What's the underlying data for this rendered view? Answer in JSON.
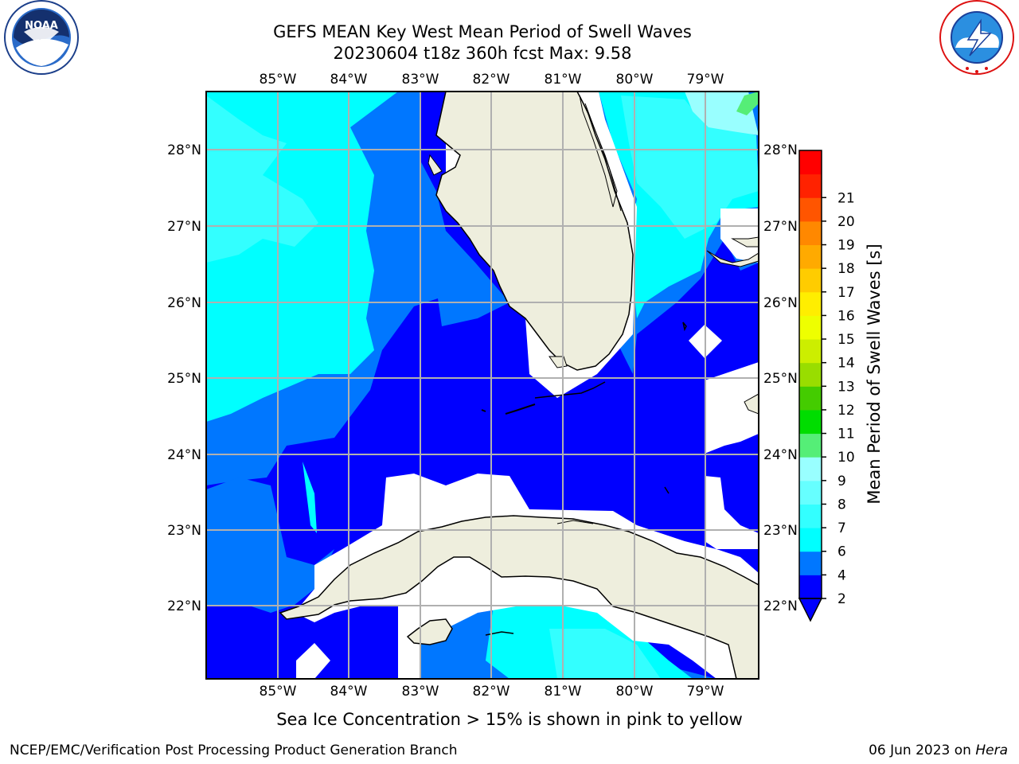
{
  "header": {
    "title_line1": "GEFS MEAN Key West Mean Period of Swell Waves",
    "title_line2": "20230604 t18z 360h fcst   Max: 9.58"
  },
  "logos": {
    "left": {
      "name": "NOAA",
      "ring_text": "NATIONAL OCEANIC AND ATMOSPHERIC ADMINISTRATION · U.S. DEPARTMENT OF COMMERCE"
    },
    "right": {
      "ring_text": "NATIONAL WEATHER SERVICE"
    }
  },
  "map": {
    "lon_labels": [
      "85°W",
      "84°W",
      "83°W",
      "82°W",
      "81°W",
      "80°W",
      "79°W"
    ],
    "lat_labels": [
      "28°N",
      "27°N",
      "26°N",
      "25°N",
      "24°N",
      "23°N",
      "22°N"
    ],
    "land_color": "#eeeedd"
  },
  "colorbar": {
    "label": "Mean Period of Swell Waves [s]",
    "ticks": [
      "2",
      "4",
      "6",
      "7",
      "8",
      "9",
      "10",
      "11",
      "12",
      "13",
      "14",
      "15",
      "16",
      "17",
      "18",
      "19",
      "20",
      "21"
    ],
    "colors": [
      "#0000ff",
      "#0077ff",
      "#00ffff",
      "#33ffff",
      "#66ffff",
      "#99ffff",
      "#55ee77",
      "#00dd00",
      "#44cc00",
      "#99dd00",
      "#ccee00",
      "#eeff00",
      "#ffee00",
      "#ffcc00",
      "#ffaa00",
      "#ff8800",
      "#ff5500",
      "#ff2200",
      "#ff0000"
    ]
  },
  "caption": "Sea Ice Concentration > 15% is shown in pink to yellow",
  "footer": {
    "left": "NCEP/EMC/Verification Post Processing Product Generation Branch",
    "date": "06 Jun 2023 on",
    "host": "Hera"
  }
}
